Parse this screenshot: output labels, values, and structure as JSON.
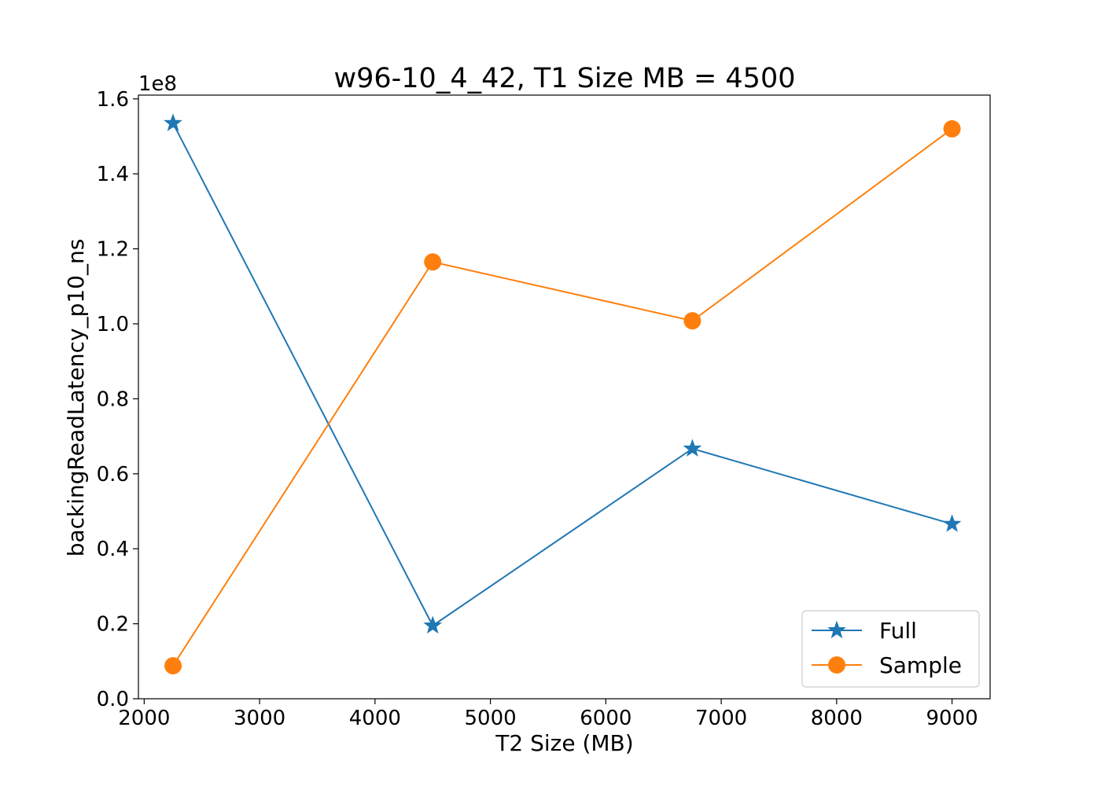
{
  "chart_data": {
    "type": "line",
    "title": "w96-10_4_42, T1 Size MB = 4500",
    "xlabel": "T2 Size (MB)",
    "ylabel": "backingReadLatency_p10_ns",
    "y_offset_label": "1e8",
    "xlim": [
      1950,
      9330
    ],
    "ylim": [
      0,
      1.61
    ],
    "x_ticks": [
      2000,
      3000,
      4000,
      5000,
      6000,
      7000,
      8000,
      9000
    ],
    "x_tick_labels": [
      "2000",
      "3000",
      "4000",
      "5000",
      "6000",
      "7000",
      "8000",
      "9000"
    ],
    "y_ticks": [
      0.0,
      0.2,
      0.4,
      0.6,
      0.8,
      1.0,
      1.2,
      1.4,
      1.6
    ],
    "y_tick_labels": [
      "0.0",
      "0.2",
      "0.4",
      "0.6",
      "0.8",
      "1.0",
      "1.2",
      "1.4",
      "1.6"
    ],
    "legend_position": "lower-right",
    "grid": false,
    "series": [
      {
        "name": "Full",
        "marker": "star",
        "color": "#1f77b4",
        "x": [
          2250,
          4500,
          6750,
          9000
        ],
        "y": [
          1.535,
          0.195,
          0.667,
          0.466
        ]
      },
      {
        "name": "Sample",
        "marker": "circle",
        "color": "#ff7f0e",
        "x": [
          2250,
          4500,
          6750,
          9000
        ],
        "y": [
          0.088,
          1.165,
          1.008,
          1.52
        ]
      }
    ]
  }
}
